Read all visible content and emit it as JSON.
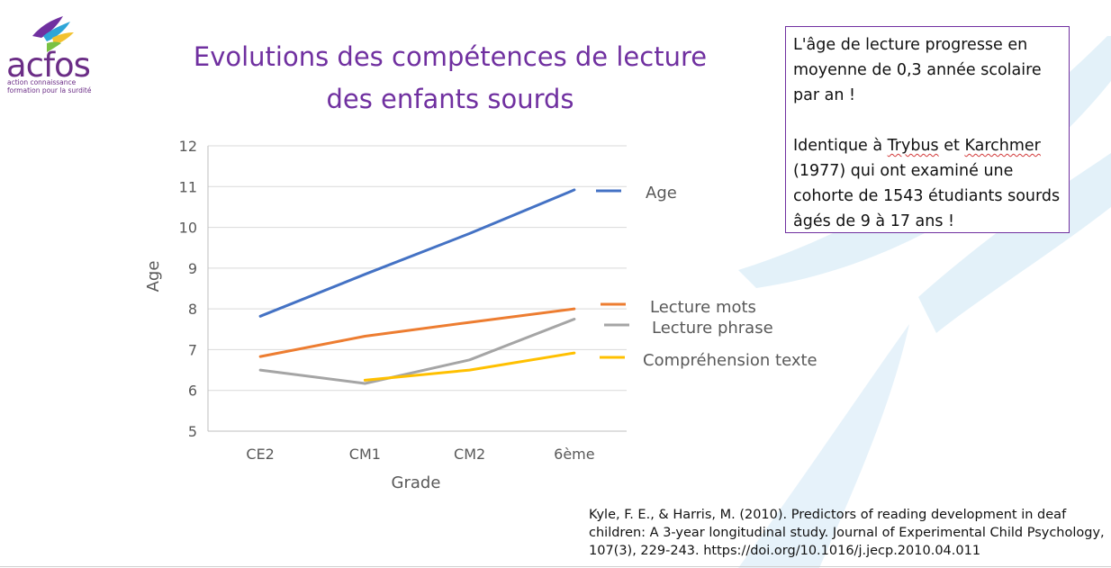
{
  "logo": {
    "wordmark": "acfos",
    "tagline_1": "action connaissance",
    "tagline_2": "formation pour la surdité"
  },
  "slide": {
    "title_line1": "Evolutions des compétences de lecture",
    "title_line2": "des enfants sourds"
  },
  "info_box": {
    "para1": "L'âge de lecture progresse en moyenne de 0,3 année scolaire par an !",
    "para2_prefix": "Identique à ",
    "para2_name1": "Trybus",
    "para2_join": " et ",
    "para2_name2": "Karchmer",
    "para2_suffix": " (1977) qui ont examiné une cohorte de 1543 étudiants sourds âgés de 9 à 17 ans !"
  },
  "citation": {
    "text": "Kyle, F. E., & Harris, M. (2010). Predictors of reading development in deaf children: A 3-year longitudinal study. Journal of Experimental Child Psychology, 107(3), 229-243. https://doi.org/10.1016/j.jecp.2010.04.011"
  },
  "colors": {
    "title": "#7030a0",
    "accent_light": "#d9ecf7"
  },
  "chart_data": {
    "type": "line",
    "title": "",
    "xlabel": "Grade",
    "ylabel": "Age",
    "categories": [
      "CE2",
      "CM1",
      "CM2",
      "6ème"
    ],
    "ylim": [
      5,
      12
    ],
    "yticks": [
      5,
      6,
      7,
      8,
      9,
      10,
      11,
      12
    ],
    "grid": true,
    "legend": "right",
    "series": [
      {
        "name": "Age",
        "color": "#4472c4",
        "values": [
          7.82,
          8.85,
          9.85,
          10.92
        ]
      },
      {
        "name": "Lecture mots",
        "color": "#ed7d31",
        "values": [
          6.83,
          7.33,
          7.67,
          8.0
        ]
      },
      {
        "name": "Lecture phrase",
        "color": "#a5a5a5",
        "values": [
          6.5,
          6.17,
          6.75,
          7.75
        ]
      },
      {
        "name": "Compréhension texte",
        "color": "#ffc000",
        "values": [
          null,
          6.25,
          6.5,
          6.92
        ]
      }
    ]
  }
}
